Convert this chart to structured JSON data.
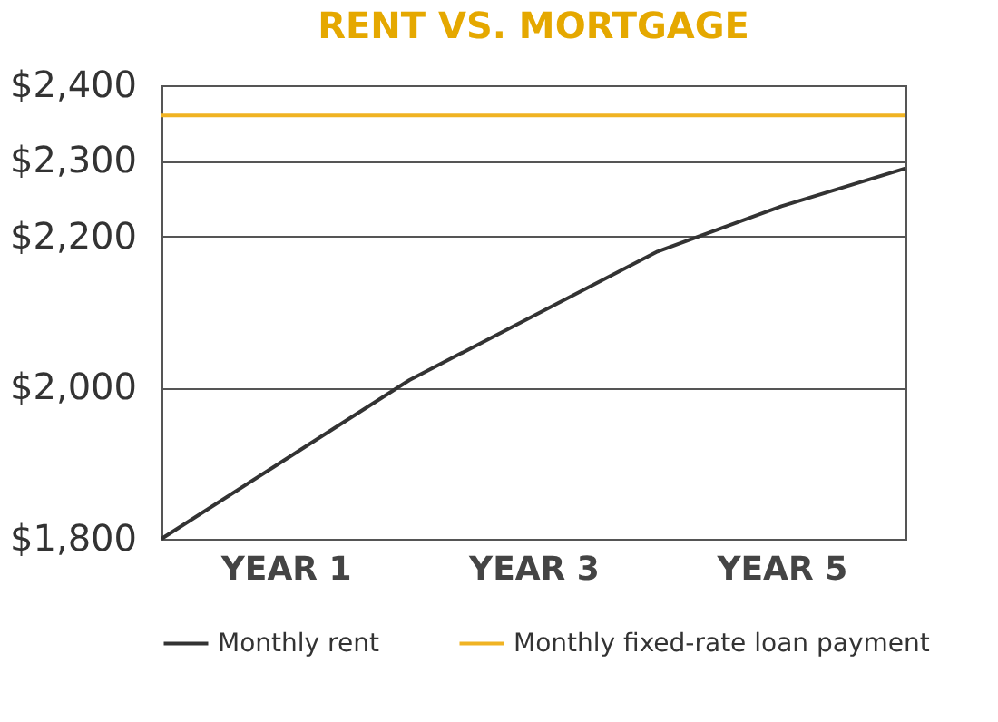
{
  "chart_data": {
    "type": "line",
    "title": "RENT VS. MORTGAGE",
    "categories": [
      null,
      "YEAR 1",
      null,
      "YEAR 3",
      null,
      "YEAR 5",
      null
    ],
    "ylim": [
      1800,
      2400
    ],
    "yticks": [
      {
        "value": 1800,
        "label": "$1,800"
      },
      {
        "value": 2000,
        "label": "$2,000"
      },
      {
        "value": 2200,
        "label": "$2,200"
      },
      {
        "value": 2300,
        "label": "$2,300"
      },
      {
        "value": 2400,
        "label": "$2,400"
      }
    ],
    "series": [
      {
        "name": "Monthly rent",
        "color": "#333333",
        "values": [
          1800,
          1905,
          2010,
          2095,
          2180,
          2240,
          2290
        ]
      },
      {
        "name": "Monthly fixed-rate loan payment",
        "color": "#f0b323",
        "values": [
          2360,
          2360,
          2360,
          2360,
          2360,
          2360,
          2360
        ]
      }
    ],
    "grid": "y",
    "legend": "bottom",
    "marker": "none",
    "line_style": "solid"
  }
}
